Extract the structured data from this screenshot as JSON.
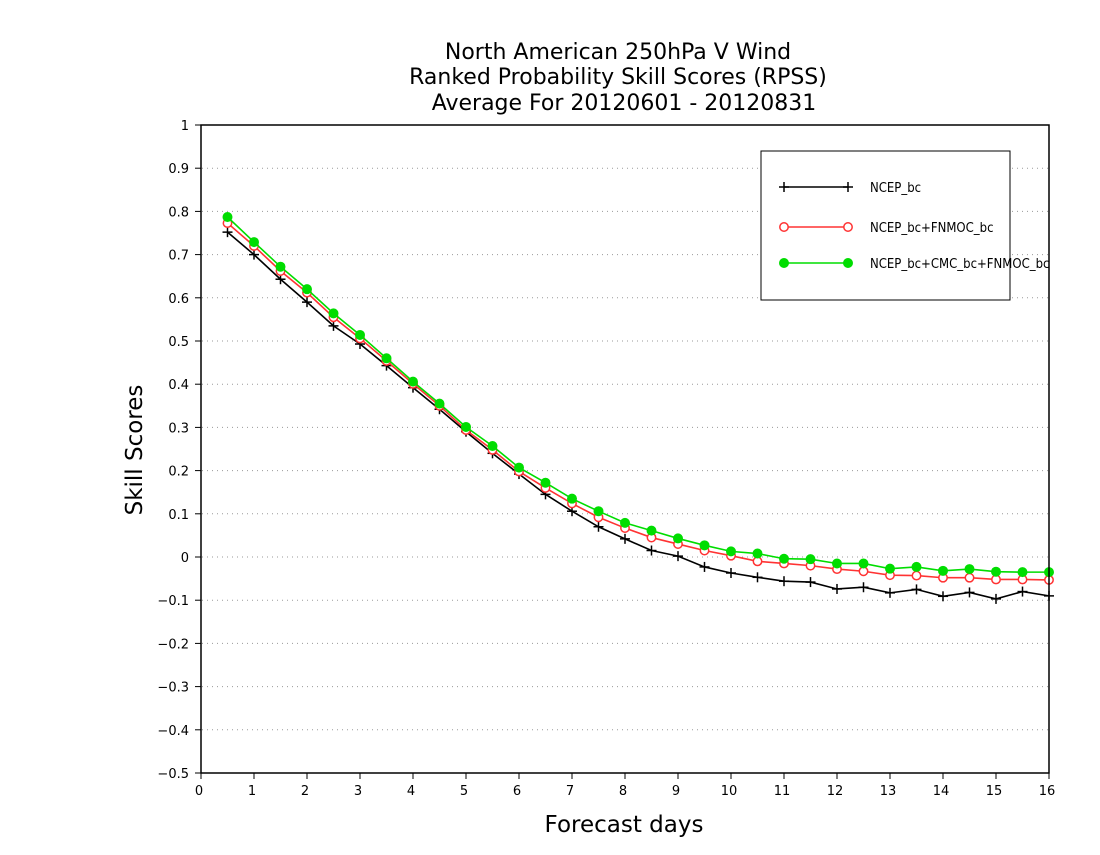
{
  "chart_data": {
    "type": "line",
    "title_lines": [
      "North American 250hPa V Wind",
      "Ranked Probability Skill Scores (RPSS)",
      "Average For 20120601 - 20120831"
    ],
    "xlabel": "Forecast days",
    "ylabel": "Skill Scores",
    "xlim": [
      0,
      16
    ],
    "ylim": [
      -0.5,
      1
    ],
    "x_ticks": [
      "0",
      "1",
      "2",
      "3",
      "4",
      "5",
      "6",
      "7",
      "8",
      "9",
      "10",
      "11",
      "12",
      "13",
      "14",
      "15",
      "16"
    ],
    "y_ticks": [
      "1",
      "0.9",
      "0.8",
      "0.7",
      "0.6",
      "0.5",
      "0.4",
      "0.3",
      "0.2",
      "0.1",
      "0",
      "−0.1",
      "−0.2",
      "−0.3",
      "−0.4",
      "−0.5"
    ],
    "grid": "horizontal-dotted",
    "legend_position": "top-right",
    "x": [
      0.5,
      1,
      1.5,
      2,
      2.5,
      3,
      3.5,
      4,
      4.5,
      5,
      5.5,
      6,
      6.5,
      7,
      7.5,
      8,
      8.5,
      9,
      9.5,
      10,
      10.5,
      11,
      11.5,
      12,
      12.5,
      13,
      13.5,
      14,
      14.5,
      15,
      15.5,
      16
    ],
    "series": [
      {
        "name": "NCEP_bc",
        "color": "#000000",
        "marker": "plus",
        "values": [
          0.752,
          0.7,
          0.643,
          0.59,
          0.535,
          0.493,
          0.443,
          0.392,
          0.342,
          0.29,
          0.24,
          0.192,
          0.145,
          0.106,
          0.07,
          0.042,
          0.015,
          0.002,
          -0.023,
          -0.037,
          -0.047,
          -0.056,
          -0.058,
          -0.074,
          -0.07,
          -0.083,
          -0.075,
          -0.091,
          -0.082,
          -0.097,
          -0.08,
          -0.09
        ]
      },
      {
        "name": "NCEP_bc+FNMOC_bc",
        "color": "#ff3333",
        "marker": "open-circle",
        "values": [
          0.773,
          0.72,
          0.662,
          0.612,
          0.555,
          0.506,
          0.454,
          0.401,
          0.35,
          0.294,
          0.248,
          0.198,
          0.16,
          0.124,
          0.092,
          0.067,
          0.045,
          0.03,
          0.015,
          0.003,
          -0.01,
          -0.015,
          -0.02,
          -0.028,
          -0.033,
          -0.042,
          -0.043,
          -0.048,
          -0.048,
          -0.052,
          -0.052,
          -0.053
        ]
      },
      {
        "name": "NCEP_bc+CMC_bc+FNMOC_bc",
        "color": "#00dd00",
        "marker": "filled-circle",
        "values": [
          0.787,
          0.729,
          0.672,
          0.62,
          0.564,
          0.514,
          0.46,
          0.406,
          0.355,
          0.301,
          0.257,
          0.207,
          0.172,
          0.135,
          0.106,
          0.079,
          0.061,
          0.043,
          0.027,
          0.013,
          0.008,
          -0.004,
          -0.005,
          -0.015,
          -0.015,
          -0.027,
          -0.023,
          -0.032,
          -0.028,
          -0.034,
          -0.035,
          -0.035
        ]
      }
    ]
  }
}
